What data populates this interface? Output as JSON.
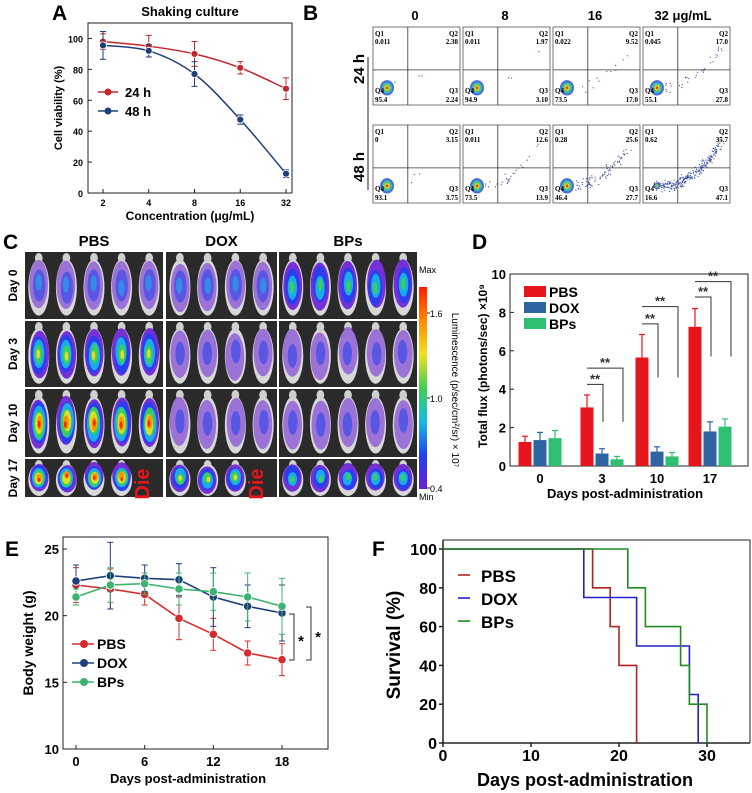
{
  "panel_labels": {
    "A": "A",
    "B": "B",
    "C": "C",
    "D": "D",
    "E": "E",
    "F": "F"
  },
  "colors": {
    "PBS_A": "#c0282a",
    "DOX_A": "#1f3f7a",
    "PBS": "#e8141b",
    "DOX": "#2f64a3",
    "BPs": "#2fbf71",
    "PBS_E": "#d42c2c",
    "DOX_E": "#1f3f7a",
    "BPs_E": "#3cb371",
    "PBS_F": "#b22222",
    "DOX_F": "#2222cc",
    "BPs_F": "#228b22"
  },
  "chart_data": [
    {
      "id": "A",
      "type": "line",
      "title": "Shaking culture",
      "xlabel": "Concentration (μg/mL)",
      "ylabel": "Cell viability (%)",
      "x_scale": "log2",
      "x": [
        2,
        4,
        8,
        16,
        32
      ],
      "x_tick_labels": [
        "2",
        "4",
        "8",
        "16",
        "32"
      ],
      "y_ticks": [
        "0",
        "20",
        "40",
        "60",
        "80",
        "100"
      ],
      "ylim": [
        0,
        110
      ],
      "legend": "center-left",
      "series": [
        {
          "name": "24 h",
          "values": [
            98,
            95,
            90,
            81,
            67.5
          ],
          "errors": [
            5,
            7,
            8,
            4,
            7
          ]
        },
        {
          "name": "48 h",
          "values": [
            95.5,
            92,
            77,
            47.5,
            12.5
          ],
          "errors": [
            9,
            4,
            8,
            3,
            2.5
          ]
        }
      ]
    },
    {
      "id": "B",
      "type": "scatter",
      "column_labels": [
        "0",
        "8",
        "16",
        "32 μg/mL"
      ],
      "row_labels": [
        "24 h",
        "48 h"
      ],
      "quadrant_names": [
        "Q1",
        "Q2",
        "Q3",
        "Q4"
      ],
      "plots": [
        [
          {
            "Q1": "0.011",
            "Q2": "2.38",
            "Q3": "2.24",
            "Q4": "95.4"
          },
          {
            "Q1": "0.011",
            "Q2": "1.97",
            "Q3": "3.10",
            "Q4": "94.9"
          },
          {
            "Q1": "0.022",
            "Q2": "9.52",
            "Q3": "17.0",
            "Q4": "73.5"
          },
          {
            "Q1": "0.045",
            "Q2": "17.0",
            "Q3": "27.8",
            "Q4": "55.1"
          }
        ],
        [
          {
            "Q1": "0",
            "Q2": "3.15",
            "Q3": "3.75",
            "Q4": "93.1"
          },
          {
            "Q1": "0.011",
            "Q2": "12.6",
            "Q3": "13.9",
            "Q4": "73.5"
          },
          {
            "Q1": "0.28",
            "Q2": "25.6",
            "Q3": "27.7",
            "Q4": "46.4"
          },
          {
            "Q1": "0.62",
            "Q2": "35.7",
            "Q3": "47.1",
            "Q4": "16.6"
          }
        ]
      ]
    },
    {
      "id": "C",
      "type": "heatmap",
      "group_labels": [
        "PBS",
        "DOX",
        "BPs"
      ],
      "row_labels": [
        "Day 0",
        "Day 3",
        "Day 10",
        "Day 17"
      ],
      "death_label": "Die",
      "colorbar": {
        "max_label": "Max",
        "min_label": "Min",
        "ticks": [
          "1.6",
          "1.0",
          "0.4"
        ],
        "label": "Luminescence (p/sec/cm²/sr) × 10⁷"
      }
    },
    {
      "id": "D",
      "type": "bar",
      "xlabel": "Days post-administration",
      "ylabel": "Total flux (photons/sec) ×10⁹",
      "categories": [
        "0",
        "3",
        "10",
        "17"
      ],
      "y_ticks": [
        "0",
        "2",
        "4",
        "6",
        "8",
        "10"
      ],
      "ylim": [
        0,
        10
      ],
      "legend": "top-left",
      "series": [
        {
          "name": "PBS",
          "values": [
            1.25,
            3.05,
            5.65,
            7.25
          ],
          "errors": [
            0.3,
            0.65,
            1.2,
            0.95
          ]
        },
        {
          "name": "DOX",
          "values": [
            1.35,
            0.65,
            0.75,
            1.8
          ],
          "errors": [
            0.4,
            0.25,
            0.25,
            0.5
          ]
        },
        {
          "name": "BPs",
          "values": [
            1.45,
            0.35,
            0.5,
            2.05
          ],
          "errors": [
            0.4,
            0.15,
            0.2,
            0.4
          ]
        }
      ],
      "significance": [
        {
          "category": "3",
          "compare": "DOX",
          "label": "**"
        },
        {
          "category": "3",
          "compare": "BPs",
          "label": "**"
        },
        {
          "category": "10",
          "compare": "DOX",
          "label": "**"
        },
        {
          "category": "10",
          "compare": "BPs",
          "label": "**"
        },
        {
          "category": "17",
          "compare": "DOX",
          "label": "**"
        },
        {
          "category": "17",
          "compare": "BPs",
          "label": "**"
        }
      ]
    },
    {
      "id": "E",
      "type": "line",
      "xlabel": "Days post-administration",
      "ylabel": "Body weight (g)",
      "x": [
        0,
        3,
        6,
        9,
        12,
        15,
        18
      ],
      "x_ticks": [
        "0",
        "6",
        "12",
        "18"
      ],
      "y_ticks": [
        "10",
        "15",
        "20",
        "25"
      ],
      "ylim": [
        10,
        26
      ],
      "legend": "center-left",
      "series": [
        {
          "name": "PBS",
          "values": [
            22.3,
            22.0,
            21.6,
            19.8,
            18.6,
            17.2,
            16.7
          ],
          "errors": [
            1.3,
            1.5,
            0.8,
            1.6,
            1.2,
            0.9,
            1.2
          ]
        },
        {
          "name": "DOX",
          "values": [
            22.6,
            23.0,
            22.8,
            22.7,
            21.4,
            20.7,
            20.2
          ],
          "errors": [
            1.2,
            2.5,
            1.0,
            1.2,
            2.2,
            1.6,
            2.1
          ]
        },
        {
          "name": "BPs",
          "values": [
            21.4,
            22.3,
            22.4,
            22.0,
            21.8,
            21.4,
            20.7
          ],
          "errors": [
            0.6,
            1.3,
            0.8,
            1.2,
            1.4,
            1.8,
            2.1
          ]
        }
      ],
      "significance": [
        {
          "compare": "PBS vs DOX",
          "label": "*"
        },
        {
          "compare": "PBS vs BPs",
          "label": "*"
        }
      ]
    },
    {
      "id": "F",
      "type": "line",
      "xlabel": "Days post-administration",
      "ylabel": "Survival (%)",
      "x_ticks": [
        "0",
        "10",
        "20",
        "30"
      ],
      "y_ticks": [
        "0",
        "20",
        "40",
        "60",
        "80",
        "100"
      ],
      "xlim": [
        0,
        35
      ],
      "ylim": [
        0,
        100
      ],
      "legend": "top-left",
      "series": [
        {
          "name": "PBS",
          "steps": [
            [
              0,
              100
            ],
            [
              17,
              80
            ],
            [
              19,
              60
            ],
            [
              20,
              40
            ],
            [
              22,
              0
            ]
          ]
        },
        {
          "name": "DOX",
          "steps": [
            [
              0,
              100
            ],
            [
              16,
              75
            ],
            [
              22,
              50
            ],
            [
              28,
              25
            ],
            [
              29,
              0
            ]
          ]
        },
        {
          "name": "BPs",
          "steps": [
            [
              0,
              100
            ],
            [
              21,
              80
            ],
            [
              23,
              60
            ],
            [
              27,
              40
            ],
            [
              28,
              20
            ],
            [
              30,
              0
            ]
          ]
        }
      ]
    }
  ]
}
